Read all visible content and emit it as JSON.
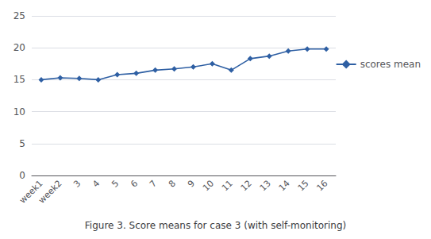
{
  "chart_data": {
    "type": "line",
    "title": "Figure 3. Score means for case 3 (with self-monitoring)",
    "categories": [
      "week1",
      "week2",
      "3",
      "4",
      "5",
      "6",
      "7",
      "8",
      "9",
      "10",
      "11",
      "12",
      "13",
      "14",
      "15",
      "16"
    ],
    "series": [
      {
        "name": "scores mean",
        "color": "#2E5FA3",
        "marker": "diamond",
        "values": [
          15.0,
          15.3,
          15.2,
          15.0,
          15.8,
          16.0,
          16.5,
          16.7,
          17.0,
          17.5,
          16.5,
          18.3,
          18.7,
          19.5,
          19.8,
          19.8
        ]
      }
    ],
    "ylim": [
      0,
      25
    ],
    "yticks": [
      0,
      5,
      10,
      15,
      20,
      25
    ],
    "grid": true,
    "legend": "right"
  }
}
